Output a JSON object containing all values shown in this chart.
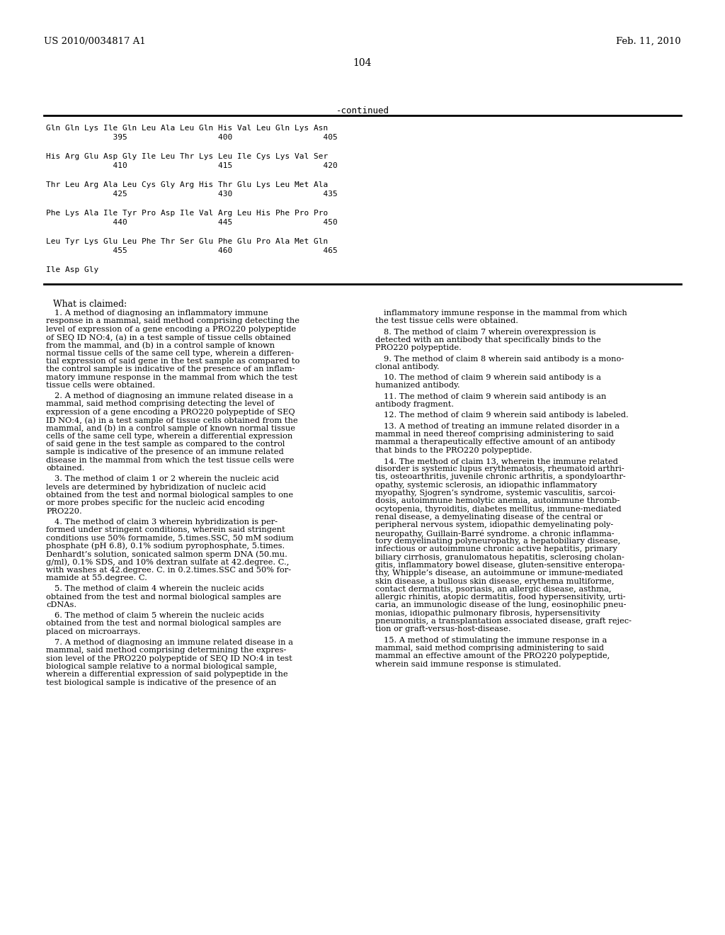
{
  "header_left": "US 2010/0034817 A1",
  "header_right": "Feb. 11, 2010",
  "page_number": "104",
  "continued_label": "-continued",
  "sequence_lines": [
    {
      "text": "Gln Gln Lys Ile Gln Leu Ala Leu Gln His Val Leu Gln Lys Asn",
      "numbers": "              395                   400                   405"
    },
    {
      "text": "His Arg Glu Asp Gly Ile Leu Thr Lys Leu Ile Cys Lys Val Ser",
      "numbers": "              410                   415                   420"
    },
    {
      "text": "Thr Leu Arg Ala Leu Cys Gly Arg His Thr Glu Lys Leu Met Ala",
      "numbers": "              425                   430                   435"
    },
    {
      "text": "Phe Lys Ala Ile Tyr Pro Asp Ile Val Arg Leu His Phe Pro Pro",
      "numbers": "              440                   445                   450"
    },
    {
      "text": "Leu Tyr Lys Glu Leu Phe Thr Ser Glu Phe Glu Pro Ala Met Gln",
      "numbers": "              455                   460                   465"
    },
    {
      "text": "Ile Asp Gly",
      "numbers": ""
    }
  ],
  "claims_header": "What is claimed:",
  "left_col_items": [
    {
      "num": "1",
      "body": "A method of diagnosing an inflammatory immune\nresponse in a mammal, said method comprising detecting the\nlevel of expression of a gene encoding a PRO220 polypeptide\nof SEQ ID NO:4, (a) in a test sample of tissue cells obtained\nfrom the mammal, and (b) in a control sample of known\nnormal tissue cells of the same cell type, wherein a differen-\ntial expression of said gene in the test sample as compared to\nthe control sample is indicative of the presence of an inflam-\nmatory immune response in the mammal from which the test\ntissue cells were obtained."
    },
    {
      "num": "2",
      "body": "A method of diagnosing an immune related disease in a\nmammal, said method comprising detecting the level of\nexpression of a gene encoding a PRO220 polypeptide of SEQ\nID NO:4, (a) in a test sample of tissue cells obtained from the\nmammal, and (b) in a control sample of known normal tissue\ncells of the same cell type, wherein a differential expression\nof said gene in the test sample as compared to the control\nsample is indicative of the presence of an immune related\ndisease in the mammal from which the test tissue cells were\nobtained."
    },
    {
      "num": "3",
      "body": "The method of claim 1 or 2 wherein the nucleic acid\nlevels are determined by hybridization of nucleic acid\nobtained from the test and normal biological samples to one\nor more probes specific for the nucleic acid encoding\nPRO220."
    },
    {
      "num": "4",
      "body": "The method of claim 3 wherein hybridization is per-\nformed under stringent conditions, wherein said stringent\nconditions use 50% formamide, 5.times.SSC, 50 mM sodium\nphosphate (pH 6.8), 0.1% sodium pyrophosphate, 5.times.\nDenhardt’s solution, sonicated salmon sperm DNA (50.mu.\ng/ml), 0.1% SDS, and 10% dextran sulfate at 42.degree. C.,\nwith washes at 42.degree. C. in 0.2.times.SSC and 50% for-\nmamide at 55.degree. C."
    },
    {
      "num": "5",
      "body": "The method of claim 4 wherein the nucleic acids\nobtained from the test and normal biological samples are\ncDNAs."
    },
    {
      "num": "6",
      "body": "The method of claim 5 wherein the nucleic acids\nobtained from the test and normal biological samples are\nplaced on microarrays."
    },
    {
      "num": "7",
      "body": "A method of diagnosing an immune related disease in a\nmammal, said method comprising determining the expres-\nsion level of the PRO220 polypeptide of SEQ ID NO:4 in test\nbiological sample relative to a normal biological sample,\nwherein a differential expression of said polypeptide in the\ntest biological sample is indicative of the presence of an"
    }
  ],
  "right_col_items": [
    {
      "num": "",
      "body": "inflammatory immune response in the mammal from which\nthe test tissue cells were obtained."
    },
    {
      "num": "8",
      "body": "The method of claim 7 wherein overexpression is\ndetected with an antibody that specifically binds to the\nPRO220 polypeptide."
    },
    {
      "num": "9",
      "body": "The method of claim 8 wherein said antibody is a mono-\nclonal antibody."
    },
    {
      "num": "10",
      "body": "The method of claim 9 wherein said antibody is a\nhumanized antibody."
    },
    {
      "num": "11",
      "body": "The method of claim 9 wherein said antibody is an\nantibody fragment."
    },
    {
      "num": "12",
      "body": "The method of claim 9 wherein said antibody is labeled."
    },
    {
      "num": "13",
      "body": "A method of treating an immune related disorder in a\nmammal in need thereof comprising administering to said\nmammal a therapeutically effective amount of an antibody\nthat binds to the PRO220 polypeptide."
    },
    {
      "num": "14",
      "body": "The method of claim 13, wherein the immune related\ndisorder is systemic lupus erythematosis, rheumatoid arthri-\ntis, osteoarthritis, juvenile chronic arthritis, a spondyloarthr-\nopathy, systemic sclerosis, an idiopathic inflammatory\nmyopathy, Sjogren’s syndrome, systemic vasculitis, sarcoi-\ndosis, autoimmune hemolytic anemia, autoimmune thromb-\nocytopenia, thyroiditis, diabetes mellitus, immune-mediated\nrenal disease, a demyelinating disease of the central or\nperipheral nervous system, idiopathic demyelinating poly-\nneuropathy, Guillain-Barré syndrome. a chronic inflamma-\ntory demyelinating polyneuropathy, a hepatobiliary disease,\ninfectious or autoimmune chronic active hepatitis, primary\nbiliary cirrhosis, granulomatous hepatitis, sclerosing cholan-\ngitis, inflammatory bowel disease, gluten-sensitive enteropa-\nthy, Whipple’s disease, an autoimmune or immune-mediated\nskin disease, a bullous skin disease, erythema multiforme,\ncontact dermatitis, psoriasis, an allergic disease, asthma,\nallergic rhinitis, atopic dermatitis, food hypersensitivity, urti-\ncaria, an immunologic disease of the lung, eosinophilic pneu-\nmonias, idiopathic pulmonary fibrosis, hypersensitivity\npneumonitis, a transplantation associated disease, graft rejec-\ntion or graft-versus-host-disease."
    },
    {
      "num": "15",
      "body": "A method of stimulating the immune response in a\nmammal, said method comprising administering to said\nmammal an effective amount of the PRO220 polypeptide,\nwherein said immune response is stimulated."
    }
  ],
  "bg": "#ffffff",
  "fg": "#000000"
}
